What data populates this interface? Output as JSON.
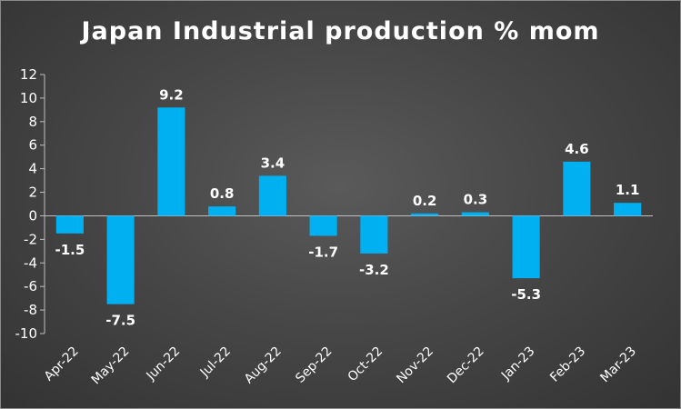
{
  "chart_data": {
    "type": "bar",
    "title": "Japan Industrial production % mom",
    "categories": [
      "Apr-22",
      "May-22",
      "Jun-22",
      "Jul-22",
      "Aug-22",
      "Sep-22",
      "Oct-22",
      "Nov-22",
      "Dec-22",
      "Jan-23",
      "Feb-23",
      "Mar-23"
    ],
    "values": [
      -1.5,
      -7.5,
      9.2,
      0.8,
      3.4,
      -1.7,
      -3.2,
      0.2,
      0.3,
      -5.3,
      4.6,
      1.1
    ],
    "ylim": [
      -10,
      12
    ],
    "yticks": [
      12,
      10,
      8,
      6,
      4,
      2,
      0,
      -2,
      -4,
      -6,
      -8,
      -10
    ],
    "grid": false,
    "legend": "none",
    "bar_color": "#00b0f0",
    "text_color": "#ffffff"
  }
}
